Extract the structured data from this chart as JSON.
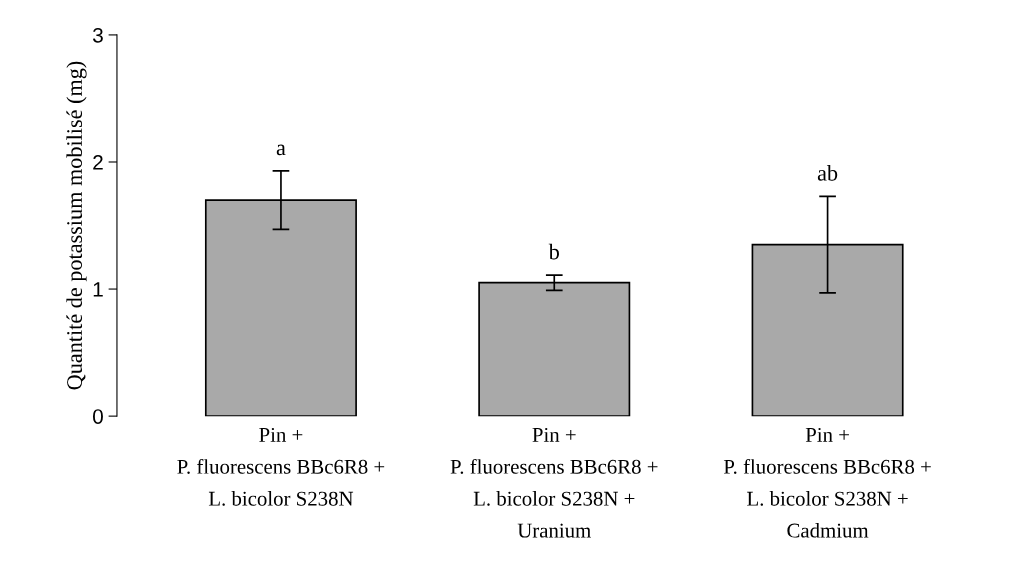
{
  "chart_data": {
    "type": "bar",
    "ylabel": "Quantité de potassium mobilisé (mg)",
    "categories": [
      "Pin +\nP. fluorescens BBc6R8 +\nL. bicolor S238N",
      "Pin +\nP. fluorescens BBc6R8 +\nL. bicolor S238N +\nUranium",
      "Pin +\nP. fluorescens BBc6R8 +\nL. bicolor S238N +\nCadmium"
    ],
    "values": [
      1.7,
      1.05,
      1.35
    ],
    "errors": [
      0.23,
      0.06,
      0.38
    ],
    "color": "#a9a9a9",
    "ylim": [
      0,
      3
    ],
    "yticks": [
      0,
      1,
      2,
      3
    ],
    "grid": false,
    "annotations": [
      {
        "text": "a",
        "x": "Pin +\nP. fluorescens BBc6R8 +\nL. bicolor S238N",
        "y": 1.93
      },
      {
        "text": "b",
        "x": "Pin +\nP. fluorescens BBc6R8 +\nL. bicolor S238N +\nUranium",
        "y": 1.11
      },
      {
        "text": "ab",
        "x": "Pin +\nP. fluorescens BBc6R8 +\nL. bicolor S238N +\nCadmium",
        "y": 1.73
      }
    ]
  }
}
